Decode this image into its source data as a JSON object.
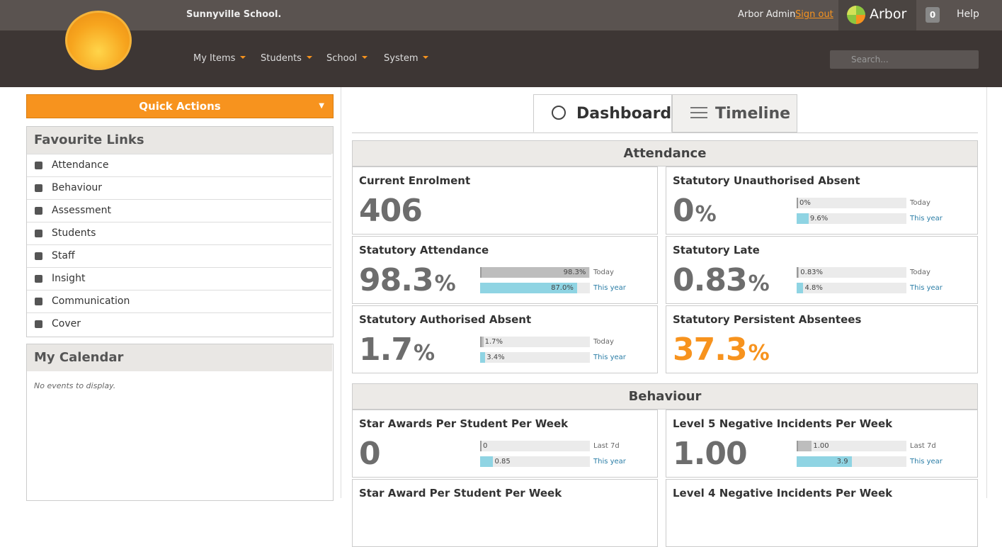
{
  "header": {
    "school": "Sunnyville School.",
    "user": "Arbor Admin",
    "sign_out": "Sign out",
    "brand": "Arbor",
    "notifications": "0",
    "help": "Help",
    "search_placeholder": "Search..."
  },
  "nav": [
    "My Items",
    "Students",
    "School",
    "System"
  ],
  "sidebar": {
    "quick_actions": "Quick Actions",
    "favourites_title": "Favourite Links",
    "favourites": [
      "Attendance",
      "Behaviour",
      "Assessment",
      "Students",
      "Staff",
      "Insight",
      "Communication",
      "Cover"
    ],
    "calendar_title": "My Calendar",
    "calendar_empty": "No events to display."
  },
  "tabs": [
    "Dashboard",
    "Timeline"
  ],
  "sections": [
    {
      "title": "Attendance",
      "cards": [
        {
          "title": "Current Enrolment",
          "value": "406"
        },
        {
          "title": "Statutory Unauthorised Absent",
          "value": "0",
          "unit": "%",
          "bars": [
            {
              "label": "0%",
              "value": 0,
              "period": "Today"
            },
            {
              "label": "9.6%",
              "value": 9.6,
              "period": "This year"
            }
          ]
        },
        {
          "title": "Statutory Attendance",
          "value": "98.3",
          "unit": "%",
          "bars": [
            {
              "label": "98.3%",
              "value": 98.3,
              "period": "Today"
            },
            {
              "label": "87.0%",
              "value": 87.0,
              "period": "This year"
            }
          ]
        },
        {
          "title": "Statutory Late",
          "value": "0.83",
          "unit": "%",
          "bars": [
            {
              "label": "0.83%",
              "value": 0.83,
              "period": "Today"
            },
            {
              "label": "4.8%",
              "value": 4.8,
              "period": "This year"
            }
          ]
        },
        {
          "title": "Statutory Authorised Absent",
          "value": "1.7",
          "unit": "%",
          "bars": [
            {
              "label": "1.7%",
              "value": 1.7,
              "period": "Today"
            },
            {
              "label": "3.4%",
              "value": 3.4,
              "period": "This year"
            }
          ]
        },
        {
          "title": "Statutory Persistent Absentees",
          "value": "37.3",
          "unit": "%",
          "color": "#f7931e"
        }
      ]
    },
    {
      "title": "Behaviour",
      "cards": [
        {
          "title": "Star Awards Per Student Per Week",
          "value": "0",
          "bars": [
            {
              "label": "0",
              "value": 0,
              "period": "Last 7d"
            },
            {
              "label": "0.85",
              "value": 0.85,
              "period": "This year"
            }
          ]
        },
        {
          "title": "Level 5 Negative Incidents Per Week",
          "value": "1.00",
          "bars": [
            {
              "label": "1.00",
              "value": 1.0,
              "period": "Last 7d"
            },
            {
              "label": "3.9",
              "value": 3.9,
              "period": "This year"
            }
          ]
        },
        {
          "title": "Star Award Per Student Per Week"
        },
        {
          "title": "Level 4 Negative Incidents Per Week"
        }
      ]
    }
  ]
}
